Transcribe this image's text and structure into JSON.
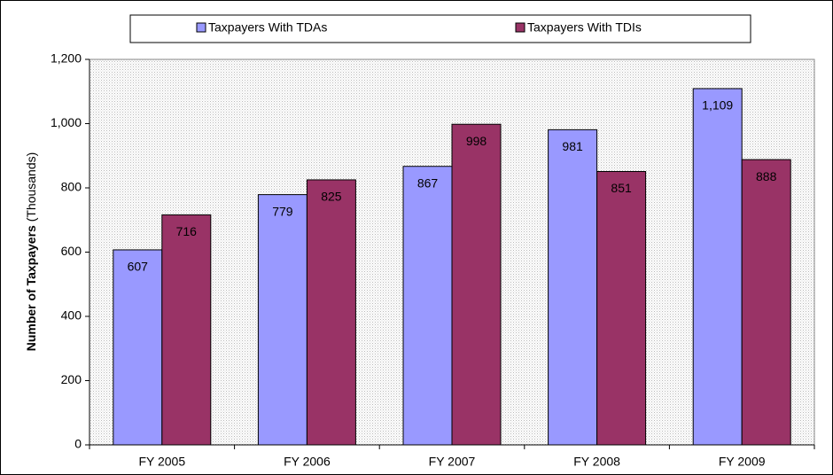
{
  "chart_data": {
    "type": "bar",
    "ylabel": "Number of Taxpayers",
    "ylabel_unit": "(Thousands)",
    "categories": [
      "FY 2005",
      "FY 2006",
      "FY 2007",
      "FY 2008",
      "FY 2009"
    ],
    "series": [
      {
        "name": "Taxpayers With TDAs",
        "color": "#9999ff",
        "values": [
          607,
          779,
          867,
          981,
          1109
        ],
        "value_labels": [
          "607",
          "779",
          "867",
          "981",
          "1,109"
        ]
      },
      {
        "name": "Taxpayers With TDIs",
        "color": "#993366",
        "values": [
          716,
          825,
          998,
          851,
          888
        ]
      }
    ],
    "ylim": [
      0,
      1200
    ],
    "yticks": [
      0,
      200,
      400,
      600,
      800,
      {
        "value": 1000,
        "label": "1,000"
      },
      {
        "value": 1200,
        "label": "1,200"
      }
    ],
    "legend": "top"
  }
}
